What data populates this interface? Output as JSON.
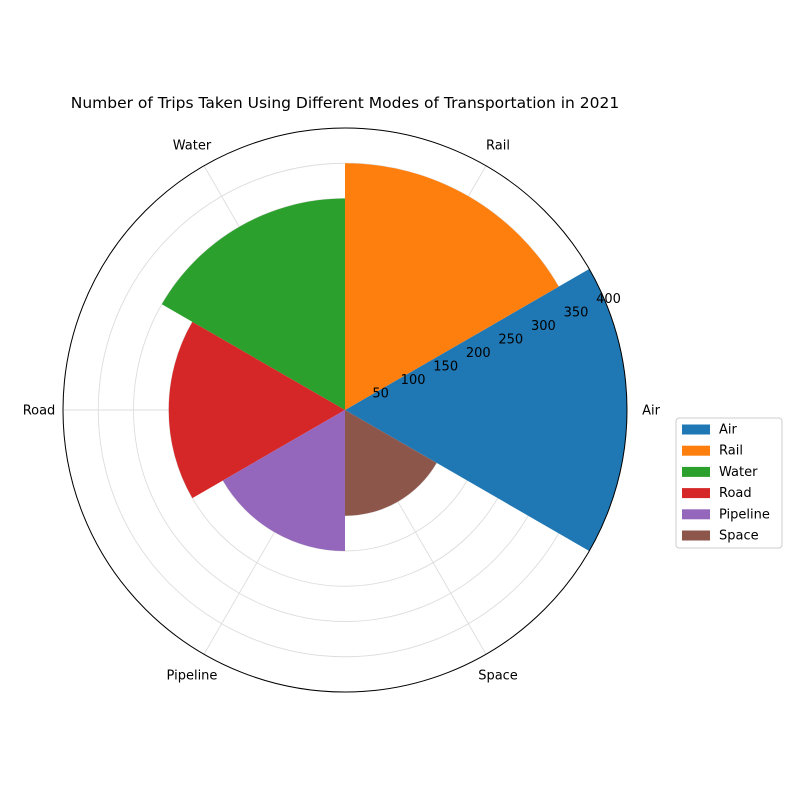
{
  "chart_data": {
    "type": "bar",
    "subtype": "polar",
    "title": "Number of Trips Taken Using Different Modes of Transportation in 2021",
    "categories": [
      "Air",
      "Rail",
      "Water",
      "Road",
      "Pipeline",
      "Space"
    ],
    "values": [
      400,
      350,
      300,
      250,
      200,
      150
    ],
    "colors": [
      "#1f77b4",
      "#ff7f0e",
      "#2ca02c",
      "#d62728",
      "#9467bd",
      "#8c564b"
    ],
    "radial_ticks": [
      50,
      100,
      150,
      200,
      250,
      300,
      350,
      400
    ],
    "rlim": [
      0,
      400
    ],
    "grid": true,
    "legend": {
      "placement": "right",
      "entries": [
        "Air",
        "Rail",
        "Water",
        "Road",
        "Pipeline",
        "Space"
      ]
    }
  }
}
